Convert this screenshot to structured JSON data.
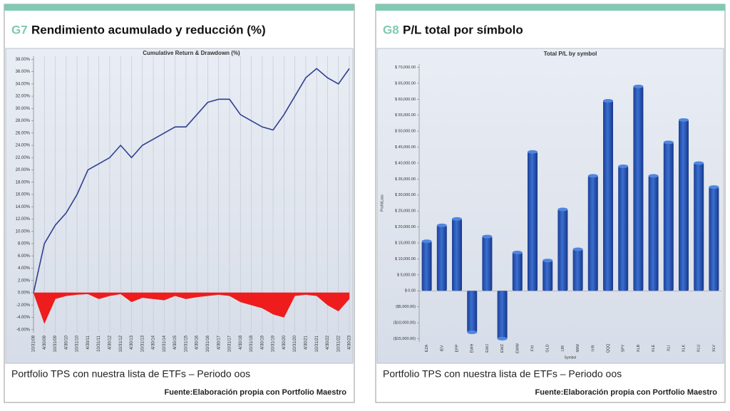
{
  "panels": [
    {
      "code": "G7",
      "heading": "Rendimiento acumulado y reducción (%)",
      "caption": "Portfolio TPS con nuestra lista de ETFs – Periodo oos",
      "source": "Fuente:Elaboración propia con Portfolio Maestro"
    },
    {
      "code": "G8",
      "heading": "P/L total por símbolo",
      "caption": "Portfolio TPS con nuestra lista de ETFs – Periodo oos",
      "source": "Fuente:Elaboración propia con Portfolio Maestro"
    }
  ],
  "chart_data": [
    {
      "type": "line",
      "title": "Cumulative Return & Drawdown (%)",
      "categories": [
        "10/31/08",
        "4/30/09",
        "10/31/09",
        "4/30/10",
        "10/31/10",
        "4/30/11",
        "10/31/11",
        "4/30/12",
        "10/31/12",
        "4/30/13",
        "10/31/13",
        "4/30/14",
        "10/31/14",
        "4/30/15",
        "10/31/15",
        "4/30/16",
        "10/31/16",
        "4/30/17",
        "10/31/17",
        "4/30/18",
        "10/31/18",
        "4/30/19",
        "10/31/19",
        "4/30/20",
        "10/31/20",
        "4/30/21",
        "10/31/21",
        "4/30/22",
        "10/31/22",
        "4/30/23"
      ],
      "series": [
        {
          "name": "Cumulative Return",
          "color": "#2e3f91",
          "values": [
            0,
            8,
            11,
            13,
            16,
            20,
            21,
            22,
            24,
            22,
            24,
            25,
            26,
            27,
            27,
            29,
            31,
            31.5,
            31.5,
            29,
            28,
            27,
            26.5,
            29,
            32,
            35,
            36.5,
            35,
            34,
            36.5
          ]
        },
        {
          "name": "Drawdown",
          "color": "#ee1c1c",
          "area": true,
          "values": [
            0,
            -5,
            -1,
            -0.5,
            -0.3,
            -0.2,
            -1,
            -0.5,
            -0.2,
            -1.5,
            -0.8,
            -1,
            -1.2,
            -0.5,
            -1,
            -0.7,
            -0.5,
            -0.3,
            -0.5,
            -1.5,
            -2,
            -2.5,
            -3.5,
            -4,
            -0.5,
            -0.3,
            -0.5,
            -2,
            -3,
            -1
          ]
        }
      ],
      "ylim": [
        -6.5,
        38.5
      ],
      "yticks": [
        {
          "value": 38,
          "label": "38.00%"
        },
        {
          "value": 36,
          "label": "36.00%"
        },
        {
          "value": 34,
          "label": "34.00%"
        },
        {
          "value": 32,
          "label": "32.00%"
        },
        {
          "value": 30,
          "label": "30.00%"
        },
        {
          "value": 28,
          "label": "28.00%"
        },
        {
          "value": 26,
          "label": "26.00%"
        },
        {
          "value": 24,
          "label": "24.00%"
        },
        {
          "value": 22,
          "label": "22.00%"
        },
        {
          "value": 20,
          "label": "20.00%"
        },
        {
          "value": 18,
          "label": "18.00%"
        },
        {
          "value": 16,
          "label": "16.00%"
        },
        {
          "value": 14,
          "label": "14.00%"
        },
        {
          "value": 12,
          "label": "12.00%"
        },
        {
          "value": 10,
          "label": "10.00%"
        },
        {
          "value": 8,
          "label": "8.00%"
        },
        {
          "value": 6,
          "label": "6.00%"
        },
        {
          "value": 4,
          "label": "4.00%"
        },
        {
          "value": 2,
          "label": "2.00%"
        },
        {
          "value": 0,
          "label": "0.00%"
        },
        {
          "value": -2,
          "label": "-2.00%"
        },
        {
          "value": -4,
          "label": "-4.00%"
        },
        {
          "value": -6,
          "label": "-6.00%"
        }
      ],
      "grid": true
    },
    {
      "type": "bar",
      "title": "Total P/L by symbol",
      "x_label": "Symbol",
      "y_label": "Profit/Loss",
      "color": "#2f5fbf",
      "categories": [
        "EZA",
        "IEV",
        "EPP",
        "EWH",
        "EWJ",
        "EWZ",
        "EWW",
        "FXI",
        "GLD",
        "IJR",
        "IWM",
        "IYR",
        "QQQ",
        "SPY",
        "XLB",
        "XLE",
        "XLI",
        "XLK",
        "XLU",
        "XLV"
      ],
      "values": [
        15500,
        20500,
        22500,
        -13000,
        17000,
        -15000,
        12000,
        43500,
        9500,
        25500,
        13000,
        36000,
        59500,
        39000,
        64000,
        36000,
        46500,
        53500,
        40000,
        32500
      ],
      "ylim": [
        -16000,
        71000
      ],
      "yticks": [
        {
          "value": 70000,
          "label": "$ 70,000.00"
        },
        {
          "value": 65000,
          "label": "$ 65,000.00"
        },
        {
          "value": 60000,
          "label": "$ 60,000.00"
        },
        {
          "value": 55000,
          "label": "$ 55,000.00"
        },
        {
          "value": 50000,
          "label": "$ 50,000.00"
        },
        {
          "value": 45000,
          "label": "$ 45,000.00"
        },
        {
          "value": 40000,
          "label": "$ 40,000.00"
        },
        {
          "value": 35000,
          "label": "$ 35,000.00"
        },
        {
          "value": 30000,
          "label": "$ 30,000.00"
        },
        {
          "value": 25000,
          "label": "$ 25,000.00"
        },
        {
          "value": 20000,
          "label": "$ 20,000.00"
        },
        {
          "value": 15000,
          "label": "$ 15,000.00"
        },
        {
          "value": 10000,
          "label": "$ 10,000.00"
        },
        {
          "value": 5000,
          "label": "$ 5,000.00"
        },
        {
          "value": 0,
          "label": "$ 0.00"
        },
        {
          "value": -5000,
          "label": "($5,000.00)"
        },
        {
          "value": -10000,
          "label": "($10,000.00)"
        },
        {
          "value": -15000,
          "label": "($15,000.00)"
        }
      ],
      "grid": false
    }
  ]
}
